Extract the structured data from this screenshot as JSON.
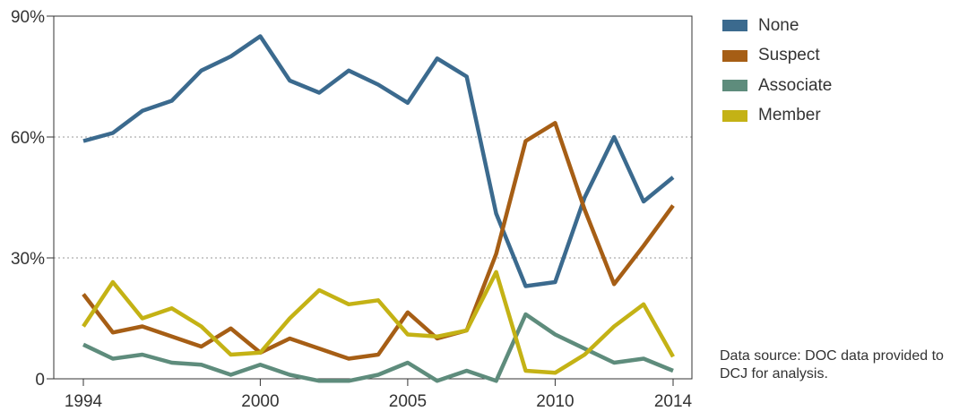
{
  "chart_data": {
    "type": "line",
    "x": [
      1994,
      1995,
      1996,
      1997,
      1998,
      1999,
      2000,
      2001,
      2002,
      2003,
      2004,
      2005,
      2006,
      2007,
      2008,
      2009,
      2010,
      2011,
      2012,
      2013,
      2014
    ],
    "xticks": [
      "1994",
      "2000",
      "2005",
      "2010",
      "2014"
    ],
    "yticks": [
      "0",
      "30%",
      "60%",
      "90%"
    ],
    "ylim": [
      0,
      90
    ],
    "xlim": [
      1994,
      2014
    ],
    "grid": "horizontal dotted at 30% and 60%",
    "legend_position": "right",
    "series": [
      {
        "name": "None",
        "color": "#3b6a8e",
        "values": [
          59,
          61,
          66.5,
          69,
          76.5,
          80,
          85,
          74,
          71,
          76.5,
          73,
          68.5,
          79.5,
          75,
          41,
          23,
          24,
          45,
          60,
          44,
          50
        ]
      },
      {
        "name": "Suspect",
        "color": "#a65e15",
        "values": [
          21,
          11.5,
          13,
          10.5,
          8,
          12.5,
          6.5,
          10,
          7.5,
          5,
          6,
          16.5,
          10,
          12,
          31,
          59,
          63.5,
          42,
          23.5,
          33,
          43
        ]
      },
      {
        "name": "Associate",
        "color": "#5e8c7c",
        "values": [
          8.5,
          5,
          6,
          4,
          3.5,
          1,
          3.5,
          1,
          -0.5,
          -0.5,
          1,
          4,
          -0.5,
          2,
          -0.5,
          16,
          11,
          7.5,
          4,
          5,
          2
        ]
      },
      {
        "name": "Member",
        "color": "#c4b215",
        "values": [
          13,
          24,
          15,
          17.5,
          13,
          6,
          6.5,
          15,
          22,
          18.5,
          19.5,
          11,
          10.5,
          12,
          26.5,
          2,
          1.5,
          6,
          13,
          18.5,
          5.5
        ]
      }
    ]
  },
  "source_note": "Data source: DOC data provided to DCJ for analysis."
}
